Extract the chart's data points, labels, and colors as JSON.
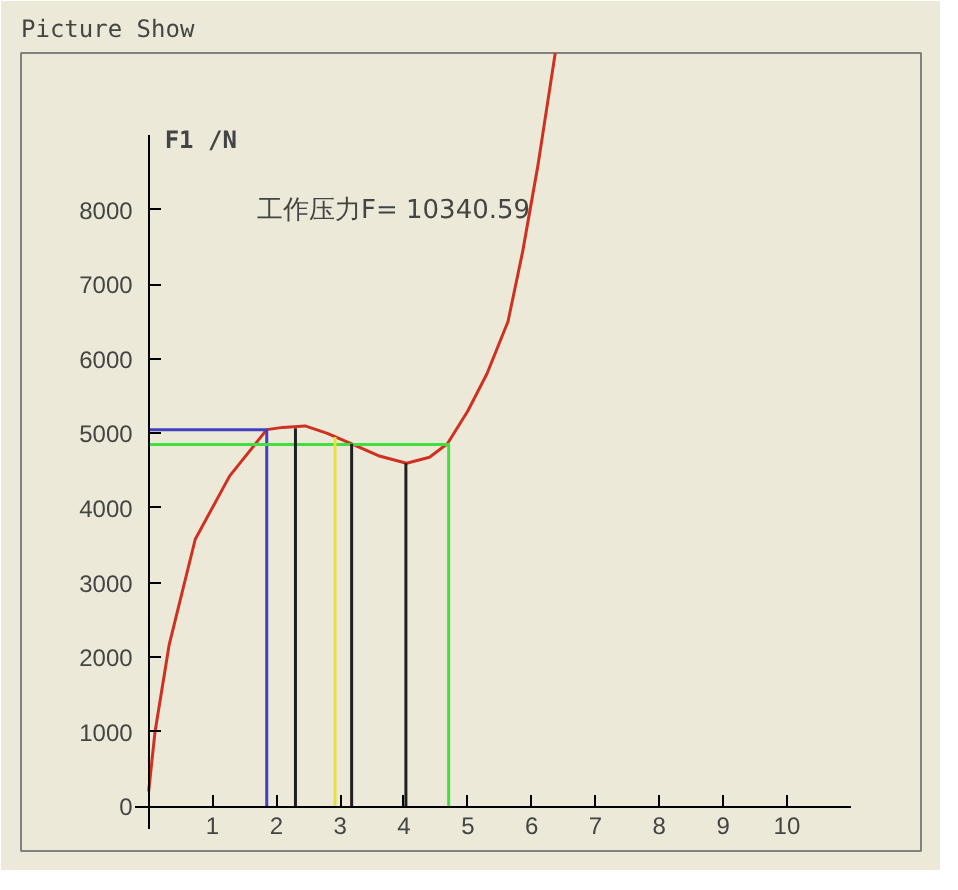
{
  "chart_data": {
    "type": "line",
    "title": "Picture Show",
    "ylabel": "F1 /N",
    "annotations": [
      "工作压力F= 10340.59"
    ],
    "xlim": [
      -2,
      12.1
    ],
    "ylim": [
      -600,
      10100
    ],
    "xticks": [
      1,
      2,
      3,
      4,
      5,
      6,
      7,
      8,
      9,
      10
    ],
    "yticks": [
      0,
      1000,
      2000,
      3000,
      4000,
      5000,
      6000,
      7000,
      8000
    ],
    "grid": false,
    "marker": "none",
    "line_style": "solid",
    "series": [
      {
        "color": "#d03020",
        "x": [
          0,
          0.1,
          0.32,
          0.73,
          1.27,
          1.85,
          2.1,
          2.45,
          2.8,
          3.18,
          3.6,
          4.04,
          4.4,
          4.68,
          5.0,
          5.3,
          5.63,
          5.86,
          6.1,
          6.37
        ],
        "values": [
          200,
          1000,
          2160,
          3580,
          4430,
          5050,
          5080,
          5100,
          5000,
          4860,
          4700,
          4600,
          4680,
          4860,
          5300,
          5800,
          6500,
          7440,
          8600,
          10100
        ]
      },
      {
        "color": "#4040c0",
        "x": [
          0,
          1.85,
          1.85
        ],
        "values": [
          5050,
          5050,
          0
        ]
      },
      {
        "color": "#40e040",
        "x": [
          0,
          4.7,
          4.7
        ],
        "values": [
          4850,
          4850,
          0
        ]
      },
      {
        "color": "#202020",
        "x": [
          2.3,
          2.3
        ],
        "values": [
          0,
          5070
        ]
      },
      {
        "color": "#e8e040",
        "x": [
          2.92,
          2.92
        ],
        "values": [
          0,
          4950
        ]
      },
      {
        "color": "#202020",
        "x": [
          3.18,
          3.18
        ],
        "values": [
          0,
          4860
        ]
      },
      {
        "color": "#202020",
        "x": [
          4.03,
          4.03
        ],
        "values": [
          0,
          4600
        ]
      }
    ]
  }
}
